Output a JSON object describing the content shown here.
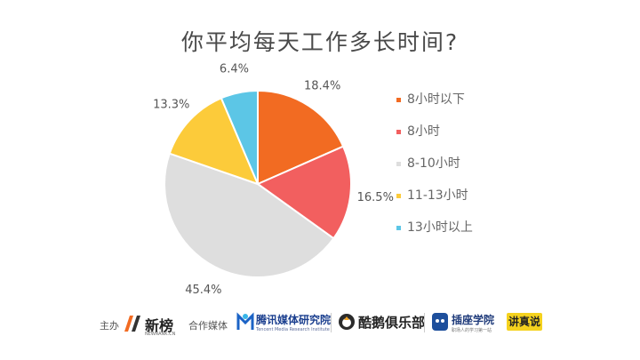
{
  "chart_data": {
    "type": "pie",
    "title": "你平均每天工作多长时间?",
    "categories": [
      "8小时以下",
      "8小时",
      "8-10小时",
      "11-13小时",
      "13小时以上"
    ],
    "values": [
      18.4,
      16.5,
      45.4,
      13.3,
      6.4
    ],
    "value_labels": [
      "18.4%",
      "16.5%",
      "45.4%",
      "13.3%",
      "6.4%"
    ],
    "colors": [
      "#f26b22",
      "#f25f5f",
      "#dedede",
      "#fccb3a",
      "#5cc6e6"
    ],
    "legend_position": "right"
  },
  "footer": {
    "host_label": "主办",
    "host_logo": "新榜",
    "host_logo_sub": "NEWRANK.CN",
    "partners_label": "合作媒体",
    "partners": [
      {
        "name": "腾讯媒体研究院",
        "sub": "Tencent Media Research Institute"
      },
      {
        "name": "酷鹅俱乐部"
      },
      {
        "name": "插座学院",
        "sub": "职场人的学习第一站"
      },
      {
        "name": "讲真说"
      }
    ]
  }
}
